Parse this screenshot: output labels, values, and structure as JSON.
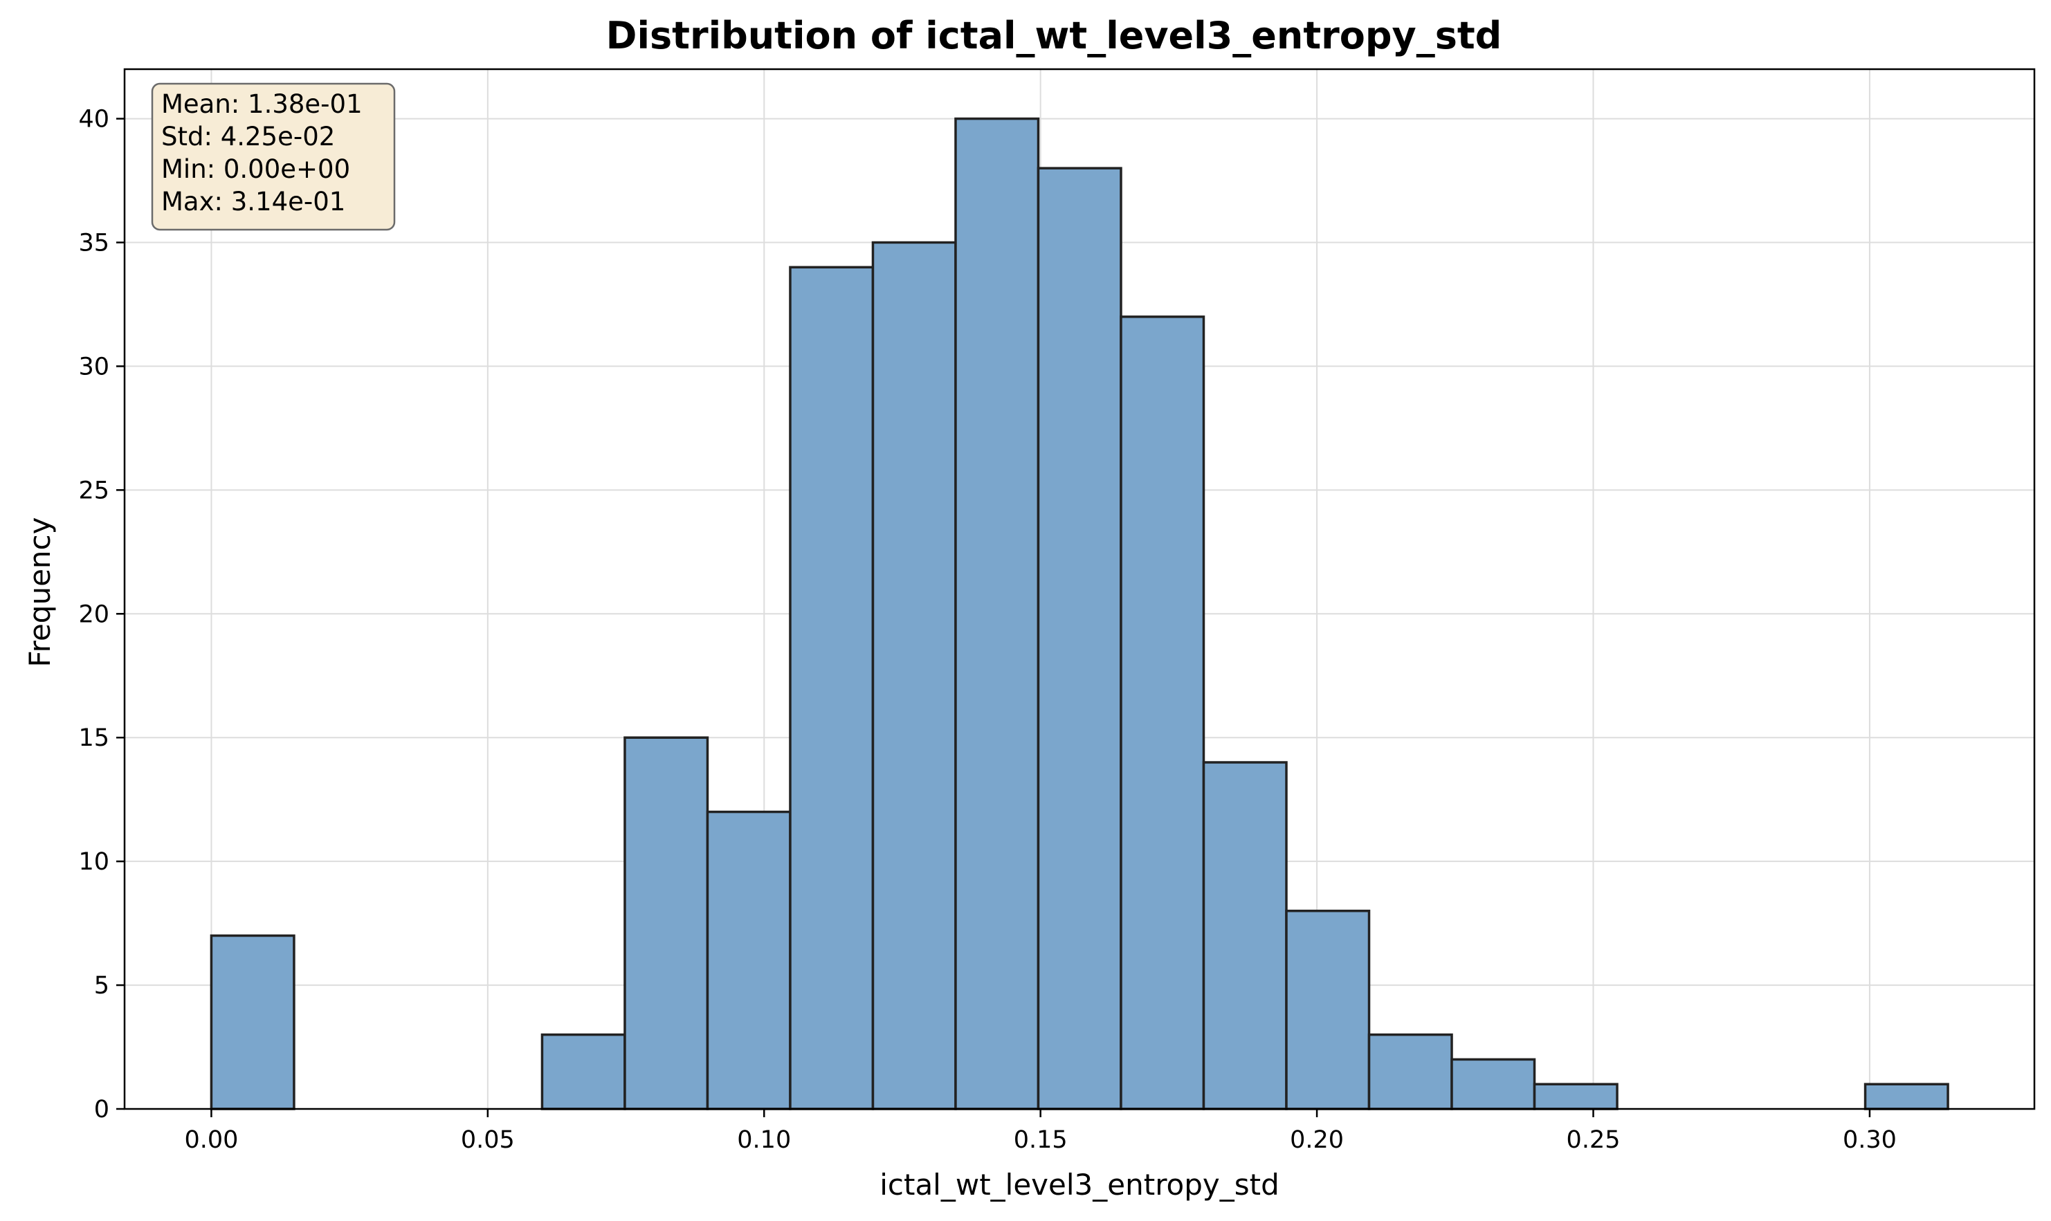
{
  "chart_data": {
    "type": "bar",
    "title": "Distribution of ictal_wt_level3_entropy_std",
    "xlabel": "ictal_wt_level3_entropy_std",
    "ylabel": "Frequency",
    "xlim": [
      -0.0157,
      0.3298
    ],
    "ylim": [
      0,
      42
    ],
    "x_ticks": [
      0.0,
      0.05,
      0.1,
      0.15,
      0.2,
      0.25,
      0.3
    ],
    "x_tick_labels": [
      "0.00",
      "0.05",
      "0.10",
      "0.15",
      "0.20",
      "0.25",
      "0.30"
    ],
    "y_ticks": [
      0,
      5,
      10,
      15,
      20,
      25,
      30,
      35,
      40
    ],
    "y_tick_labels": [
      "0",
      "5",
      "10",
      "15",
      "20",
      "25",
      "30",
      "35",
      "40"
    ],
    "bin_start": 0.0,
    "bin_width": 0.01496,
    "counts": [
      7,
      0,
      0,
      0,
      3,
      15,
      12,
      34,
      35,
      40,
      38,
      32,
      14,
      8,
      3,
      2,
      1,
      0,
      0,
      0,
      1
    ],
    "bar_color": "#7ba6cc",
    "edge_color": "#222222",
    "grid": true,
    "stats_box": {
      "placement": "top-left",
      "lines": [
        "Mean: 1.38e-01",
        "Std: 4.25e-02",
        "Min: 0.00e+00",
        "Max: 3.14e-01"
      ],
      "background": "#f7ecd6"
    }
  }
}
